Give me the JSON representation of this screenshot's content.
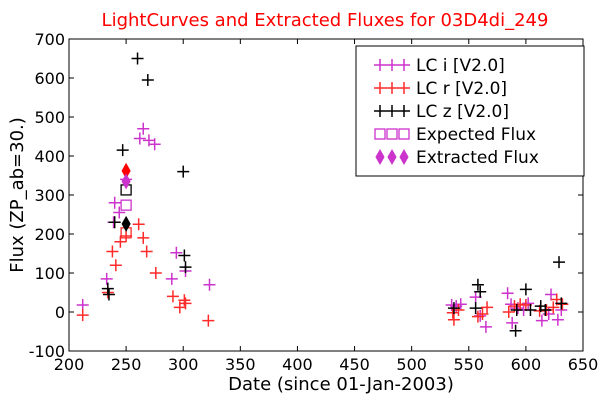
{
  "chart_data": {
    "type": "scatter",
    "title": "LightCurves and Extracted Fluxes for 03D4di_249",
    "title_color": "#ff0000",
    "xlabel": "Date (since 01-Jan-2003)",
    "ylabel": "Flux (ZP_ab=30.)",
    "xlim": [
      200,
      650
    ],
    "ylim": [
      -100,
      700
    ],
    "x_ticks": [
      200,
      250,
      300,
      350,
      400,
      450,
      500,
      550,
      600,
      650
    ],
    "y_ticks": [
      -100,
      0,
      100,
      200,
      300,
      400,
      500,
      600,
      700
    ],
    "x_tick_labels": [
      "200",
      "250",
      "300",
      "350",
      "400",
      "450",
      "500",
      "550",
      "600",
      "650"
    ],
    "y_tick_labels": [
      "-100",
      "0",
      "100",
      "200",
      "300",
      "400",
      "500",
      "600",
      "700"
    ],
    "grid": false,
    "legend_position": "top-right",
    "series": [
      {
        "name": "LC i [V2.0]",
        "marker": "plus",
        "color": "#cc33cc",
        "points": [
          [
            212,
            18
          ],
          [
            233,
            85
          ],
          [
            239,
            230
          ],
          [
            240,
            280
          ],
          [
            244,
            255
          ],
          [
            250,
            340
          ],
          [
            262,
            445
          ],
          [
            265,
            470
          ],
          [
            270,
            440
          ],
          [
            275,
            430
          ],
          [
            290,
            85
          ],
          [
            294,
            152
          ],
          [
            302,
            105
          ],
          [
            323,
            70
          ],
          [
            535,
            18
          ],
          [
            539,
            15
          ],
          [
            543,
            20
          ],
          [
            556,
            38
          ],
          [
            560,
            -10
          ],
          [
            565,
            -38
          ],
          [
            584,
            48
          ],
          [
            587,
            20
          ],
          [
            588,
            -28
          ],
          [
            593,
            10
          ],
          [
            598,
            5
          ],
          [
            602,
            22
          ],
          [
            614,
            -22
          ],
          [
            620,
            -5
          ],
          [
            622,
            45
          ],
          [
            628,
            -20
          ],
          [
            631,
            5
          ]
        ]
      },
      {
        "name": "LC r [V2.0]",
        "marker": "plus",
        "color": "#ff2a2a",
        "points": [
          [
            212,
            -8
          ],
          [
            234,
            50
          ],
          [
            238,
            155
          ],
          [
            241,
            120
          ],
          [
            245,
            180
          ],
          [
            250,
            195
          ],
          [
            261,
            225
          ],
          [
            265,
            190
          ],
          [
            268,
            155
          ],
          [
            276,
            100
          ],
          [
            291,
            40
          ],
          [
            297,
            12
          ],
          [
            301,
            30
          ],
          [
            302,
            22
          ],
          [
            322,
            -22
          ],
          [
            536,
            -2
          ],
          [
            537,
            -20
          ],
          [
            541,
            5
          ],
          [
            558,
            -12
          ],
          [
            562,
            -5
          ],
          [
            566,
            12
          ],
          [
            585,
            0
          ],
          [
            590,
            15
          ],
          [
            595,
            20
          ],
          [
            600,
            18
          ],
          [
            612,
            3
          ],
          [
            618,
            5
          ],
          [
            624,
            12
          ],
          [
            627,
            32
          ],
          [
            632,
            20
          ]
        ]
      },
      {
        "name": "LC z [V2.0]",
        "marker": "plus",
        "color": "#000000",
        "points": [
          [
            234,
            60
          ],
          [
            235,
            45
          ],
          [
            240,
            230
          ],
          [
            247,
            415
          ],
          [
            260,
            650
          ],
          [
            269,
            595
          ],
          [
            300,
            360
          ],
          [
            301,
            145
          ],
          [
            302,
            115
          ],
          [
            537,
            10
          ],
          [
            556,
            10
          ],
          [
            558,
            70
          ],
          [
            560,
            52
          ],
          [
            591,
            -48
          ],
          [
            592,
            5
          ],
          [
            600,
            58
          ],
          [
            604,
            5
          ],
          [
            613,
            15
          ],
          [
            617,
            5
          ],
          [
            629,
            128
          ],
          [
            631,
            22
          ]
        ]
      },
      {
        "name": "Expected Flux",
        "marker": "square-open",
        "colors": [
          "#000000",
          "#cc33cc",
          "#ff2a2a"
        ],
        "points": [
          [
            250,
            313
          ],
          [
            250,
            274
          ],
          [
            250,
            203
          ]
        ]
      },
      {
        "name": "Extracted Flux",
        "marker": "diamond-filled",
        "colors": [
          "#ff0000",
          "#cc33cc",
          "#000000"
        ],
        "points": [
          [
            250,
            362
          ],
          [
            250,
            335
          ],
          [
            250,
            226
          ]
        ]
      }
    ]
  }
}
